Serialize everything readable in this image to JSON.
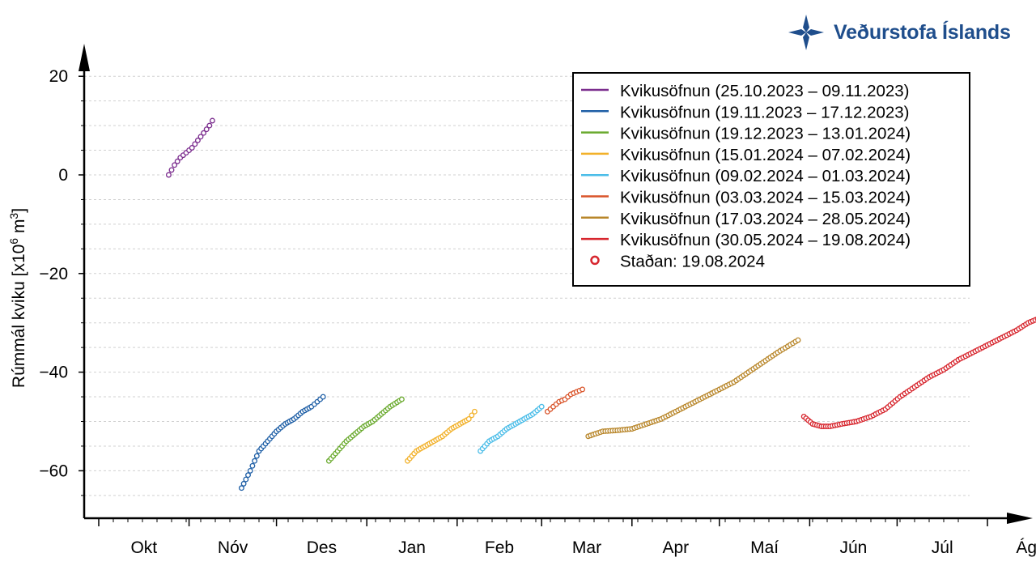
{
  "brand": {
    "name": "Veðurstofa Íslands",
    "color": "#1f4e8c"
  },
  "chart_data": {
    "type": "scatter",
    "title": "",
    "ylabel": "Rúmmál kviku [x10^6 m^3]",
    "ylabel_parts": {
      "base": "Rúmmál kviku [x10",
      "exp1": "6",
      "mid": " m",
      "exp2": "3",
      "end": "]"
    },
    "xlabel": "",
    "ylim": [
      -70,
      25
    ],
    "yticks": [
      20,
      0,
      -20,
      -40,
      -60
    ],
    "ytick_labels": [
      "20",
      "0",
      "−20",
      "−40",
      "−60"
    ],
    "x_start": "2023-10-01",
    "xlim_end": "2024-08-31",
    "month_ticks": [
      "2023-10-01",
      "2023-11-01",
      "2023-12-01",
      "2024-01-01",
      "2024-02-01",
      "2024-03-01",
      "2024-04-01",
      "2024-05-01",
      "2024-06-01",
      "2024-07-01",
      "2024-08-01"
    ],
    "month_labels": [
      "Okt",
      "Nóv",
      "Des",
      "Jan",
      "Feb",
      "Mar",
      "Apr",
      "Maí",
      "Jún",
      "Júl",
      "Ágú"
    ],
    "grid": true,
    "legend_position": "top-right",
    "series": [
      {
        "name": "Kvikusöfnun (25.10.2023 – 09.11.2023)",
        "color": "#7b2d8e",
        "x": [
          "2023-10-25",
          "2023-10-27",
          "2023-10-29",
          "2023-10-31",
          "2023-11-02",
          "2023-11-04",
          "2023-11-06",
          "2023-11-08",
          "2023-11-09"
        ],
        "y": [
          0,
          2,
          3.5,
          4.5,
          5.5,
          7,
          8.5,
          10,
          11
        ]
      },
      {
        "name": "Kvikusöfnun (19.11.2023 – 17.12.2023)",
        "color": "#1f5fa6",
        "x": [
          "2023-11-19",
          "2023-11-22",
          "2023-11-25",
          "2023-11-28",
          "2023-12-01",
          "2023-12-04",
          "2023-12-07",
          "2023-12-10",
          "2023-12-13",
          "2023-12-15",
          "2023-12-17"
        ],
        "y": [
          -63.5,
          -60,
          -56,
          -54,
          -52,
          -50.5,
          -49.5,
          -48,
          -47,
          -46,
          -45
        ]
      },
      {
        "name": "Kvikusöfnun (19.12.2023 – 13.01.2024)",
        "color": "#6aaa2e",
        "x": [
          "2023-12-19",
          "2023-12-22",
          "2023-12-25",
          "2023-12-28",
          "2023-12-31",
          "2024-01-03",
          "2024-01-06",
          "2024-01-09",
          "2024-01-13"
        ],
        "y": [
          -58,
          -56,
          -54,
          -52.5,
          -51,
          -50,
          -48.5,
          -47,
          -45.5
        ]
      },
      {
        "name": "Kvikusöfnun (15.01.2024 – 07.02.2024)",
        "color": "#f2b12a",
        "x": [
          "2024-01-15",
          "2024-01-18",
          "2024-01-21",
          "2024-01-24",
          "2024-01-27",
          "2024-01-30",
          "2024-02-02",
          "2024-02-05",
          "2024-02-07"
        ],
        "y": [
          -58,
          -56,
          -55,
          -54,
          -53,
          -51.5,
          -50.5,
          -49.5,
          -48
        ]
      },
      {
        "name": "Kvikusöfnun (09.02.2024 – 01.03.2024)",
        "color": "#4bbde8",
        "x": [
          "2024-02-09",
          "2024-02-12",
          "2024-02-15",
          "2024-02-18",
          "2024-02-21",
          "2024-02-24",
          "2024-02-27",
          "2024-03-01"
        ],
        "y": [
          -56,
          -54,
          -53,
          -51.5,
          -50.5,
          -49.5,
          -48.5,
          -47
        ]
      },
      {
        "name": "Kvikusöfnun (03.03.2024 – 15.03.2024)",
        "color": "#d9542a",
        "x": [
          "2024-03-03",
          "2024-03-05",
          "2024-03-07",
          "2024-03-09",
          "2024-03-11",
          "2024-03-13",
          "2024-03-15"
        ],
        "y": [
          -48,
          -47,
          -46,
          -45.5,
          -44.5,
          -44,
          -43.5
        ]
      },
      {
        "name": "Kvikusöfnun (17.03.2024 – 28.05.2024)",
        "color": "#b8862a",
        "x": [
          "2024-03-17",
          "2024-03-22",
          "2024-03-27",
          "2024-04-01",
          "2024-04-06",
          "2024-04-11",
          "2024-04-16",
          "2024-04-21",
          "2024-04-26",
          "2024-05-01",
          "2024-05-06",
          "2024-05-11",
          "2024-05-16",
          "2024-05-21",
          "2024-05-28"
        ],
        "y": [
          -53,
          -52,
          -51.8,
          -51.5,
          -50.5,
          -49.5,
          -48,
          -46.5,
          -45,
          -43.5,
          -42,
          -40,
          -38,
          -36,
          -33.5
        ]
      },
      {
        "name": "Kvikusöfnun (30.05.2024 – 19.08.2024)",
        "color": "#d7262e",
        "x": [
          "2024-05-30",
          "2024-06-02",
          "2024-06-05",
          "2024-06-08",
          "2024-06-12",
          "2024-06-17",
          "2024-06-22",
          "2024-06-27",
          "2024-07-02",
          "2024-07-07",
          "2024-07-12",
          "2024-07-17",
          "2024-07-22",
          "2024-07-27",
          "2024-08-01",
          "2024-08-06",
          "2024-08-11",
          "2024-08-15",
          "2024-08-19"
        ],
        "y": [
          -49,
          -50.5,
          -51,
          -51,
          -50.5,
          -50,
          -49,
          -47.5,
          -45,
          -43,
          -41,
          -39.5,
          -37.5,
          -36,
          -34.5,
          -33,
          -31.5,
          -30,
          -29
        ]
      }
    ],
    "current": {
      "label": "Staðan: 19.08.2024",
      "x": "2024-08-19",
      "y": -29,
      "color": "#d7262e"
    }
  }
}
